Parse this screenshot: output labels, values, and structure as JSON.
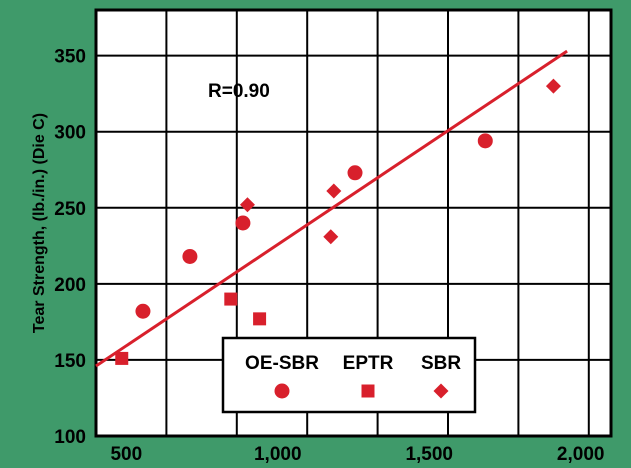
{
  "chart_data": {
    "type": "scatter",
    "title": "",
    "xlabel": "",
    "ylabel": "Tear Strength, (lb./in.) (Die C)",
    "xlim": [
      400,
      2100
    ],
    "ylim": [
      100,
      380
    ],
    "x_ticks": [
      500,
      1000,
      1500,
      2000
    ],
    "x_tick_labels": [
      "500",
      "1,000",
      "1,500",
      "2,000"
    ],
    "y_ticks": [
      100,
      150,
      200,
      250,
      300,
      350
    ],
    "y_tick_labels": [
      "100",
      "150",
      "200",
      "250",
      "300",
      "350"
    ],
    "grid": true,
    "legend_position": "bottom-center",
    "annotation": "R=0.90",
    "marker_color": "#d8202c",
    "background_color": "#3f9a6a",
    "series": [
      {
        "name": "OE-SBR",
        "marker": "circle",
        "points": [
          [
            555,
            182
          ],
          [
            710,
            218
          ],
          [
            885,
            240
          ],
          [
            1255,
            273
          ],
          [
            1685,
            294
          ]
        ]
      },
      {
        "name": "EPTR",
        "marker": "square",
        "points": [
          [
            485,
            151
          ],
          [
            845,
            190
          ],
          [
            940,
            177
          ]
        ]
      },
      {
        "name": "SBR",
        "marker": "diamond",
        "points": [
          [
            900,
            252
          ],
          [
            1185,
            261
          ],
          [
            1175,
            231
          ],
          [
            1910,
            330
          ]
        ]
      }
    ],
    "trendline": {
      "from": [
        400,
        146
      ],
      "to": [
        1955,
        353
      ]
    }
  }
}
